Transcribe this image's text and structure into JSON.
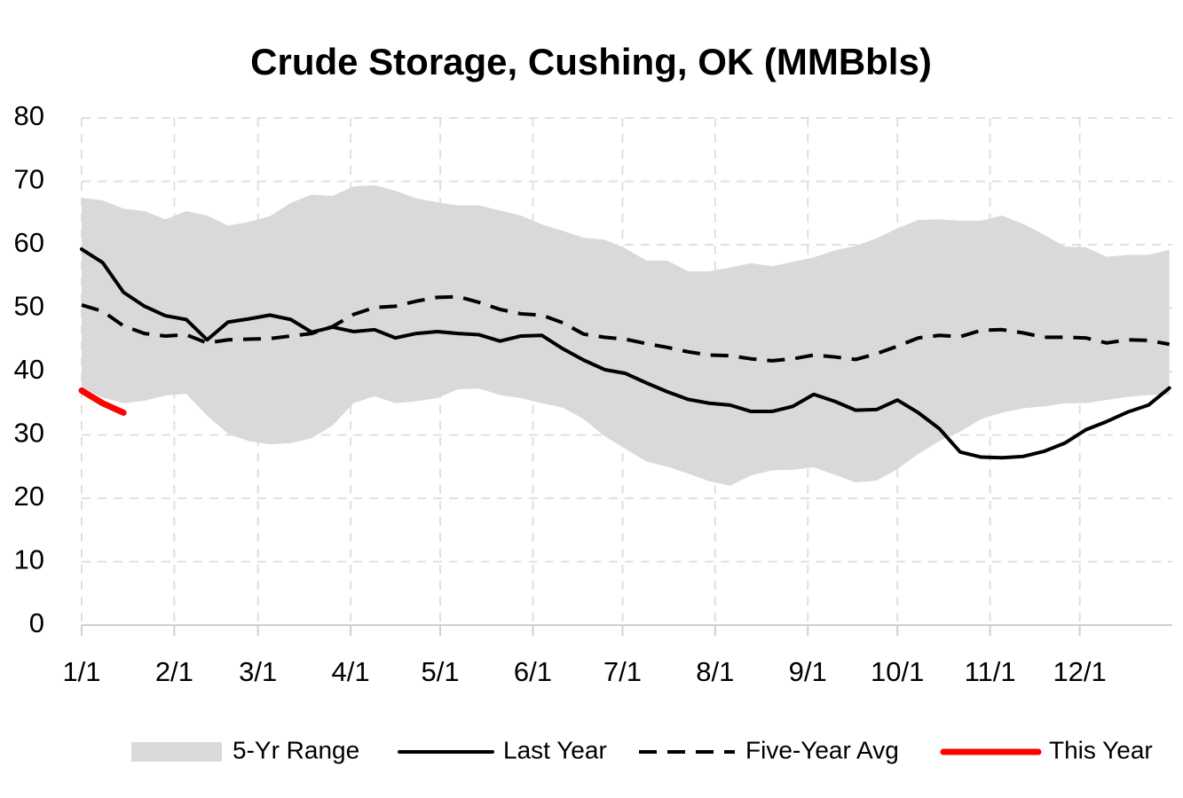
{
  "chart_data": {
    "type": "line",
    "title": "Crude Storage, Cushing, OK (MMBbls)",
    "x": [
      0,
      7,
      14,
      21,
      28,
      35,
      42,
      49,
      56,
      63,
      70,
      77,
      84,
      91,
      98,
      105,
      112,
      119,
      126,
      133,
      140,
      147,
      154,
      161,
      168,
      175,
      182,
      189,
      196,
      203,
      210,
      217,
      224,
      231,
      238,
      245,
      252,
      259,
      266,
      273,
      280,
      287,
      294,
      301,
      308,
      315,
      322,
      329,
      336,
      343,
      350,
      357,
      364
    ],
    "xlim": [
      0,
      365
    ],
    "xticks": [
      {
        "value": 0,
        "label": "1/1"
      },
      {
        "value": 31,
        "label": "2/1"
      },
      {
        "value": 59,
        "label": "3/1"
      },
      {
        "value": 90,
        "label": "4/1"
      },
      {
        "value": 120,
        "label": "5/1"
      },
      {
        "value": 151,
        "label": "6/1"
      },
      {
        "value": 181,
        "label": "7/1"
      },
      {
        "value": 212,
        "label": "8/1"
      },
      {
        "value": 243,
        "label": "9/1"
      },
      {
        "value": 273,
        "label": "10/1"
      },
      {
        "value": 304,
        "label": "11/1"
      },
      {
        "value": 334,
        "label": "12/1"
      }
    ],
    "ylim": [
      0,
      80
    ],
    "yticks": [
      0,
      10,
      20,
      30,
      40,
      50,
      60,
      70,
      80
    ],
    "grid": true,
    "legend": "bottom",
    "series": [
      {
        "name": "5-Yr Range",
        "color": "#d9d9d9",
        "style": "range",
        "upper": [
          67.4,
          67,
          65.7,
          65.3,
          64,
          65.3,
          64.6,
          63,
          63.6,
          64.5,
          66.6,
          67.9,
          67.7,
          69.2,
          69.4,
          68.5,
          67.3,
          66.7,
          66.2,
          66.2,
          65.4,
          64.6,
          63.2,
          62.2,
          61.1,
          60.8,
          59.4,
          57.5,
          57.5,
          55.8,
          55.8,
          56.4,
          57.1,
          56.6,
          57.3,
          58,
          59.1,
          59.8,
          61,
          62.6,
          63.9,
          64,
          63.8,
          63.8,
          64.6,
          63.3,
          61.6,
          59.7,
          59.6,
          58.1,
          58.4,
          58.4,
          59.2
        ],
        "lower": [
          37.5,
          35.9,
          35,
          35.4,
          36.2,
          36.5,
          33,
          30.2,
          29,
          28.5,
          28.7,
          29.5,
          31.5,
          35,
          36.1,
          35,
          35.3,
          35.8,
          37.2,
          37.3,
          36.3,
          35.8,
          35,
          34.3,
          32.5,
          29.8,
          27.8,
          25.8,
          25,
          23.9,
          22.7,
          22,
          23.6,
          24.4,
          24.5,
          24.9,
          23.7,
          22.5,
          22.8,
          24.6,
          27,
          29,
          30.5,
          32.5,
          33.5,
          34.2,
          34.5,
          35,
          35,
          35.5,
          36,
          36.3,
          36.4
        ]
      },
      {
        "name": "Last Year",
        "color": "#000000",
        "style": "solid",
        "values": [
          59.3,
          57.2,
          52.5,
          50.3,
          48.8,
          48.2,
          45,
          47.8,
          48.3,
          48.9,
          48.2,
          46.2,
          47,
          46.3,
          46.6,
          45.3,
          46,
          46.3,
          46,
          45.8,
          44.8,
          45.6,
          45.7,
          43.6,
          41.8,
          40.3,
          39.7,
          38.2,
          36.8,
          35.6,
          35,
          34.7,
          33.7,
          33.7,
          34.5,
          36.4,
          35.3,
          33.9,
          34,
          35.5,
          33.5,
          31,
          27.3,
          26.5,
          26.4,
          26.6,
          27.4,
          28.7,
          30.8,
          32.1,
          33.6,
          34.7,
          37.4
        ]
      },
      {
        "name": "Five-Year Avg",
        "color": "#000000",
        "style": "dashed",
        "values": [
          50.5,
          49.5,
          47.2,
          46,
          45.6,
          45.8,
          44.5,
          45,
          45.1,
          45.2,
          45.6,
          46,
          47.1,
          49,
          50.1,
          50.3,
          51.1,
          51.7,
          51.8,
          50.9,
          49.8,
          49.1,
          48.9,
          47.7,
          45.9,
          45.4,
          45.1,
          44.4,
          43.8,
          43.1,
          42.6,
          42.5,
          42,
          41.7,
          42,
          42.6,
          42.3,
          41.9,
          42.8,
          44,
          45.3,
          45.7,
          45.5,
          46.5,
          46.6,
          46.1,
          45.4,
          45.4,
          45.3,
          44.5,
          45,
          44.9,
          44.3
        ]
      },
      {
        "name": "This Year",
        "color": "#ff0000",
        "style": "thick",
        "values": [
          37,
          35,
          33.5,
          null,
          null,
          null,
          null,
          null,
          null,
          null,
          null,
          null,
          null,
          null,
          null,
          null,
          null,
          null,
          null,
          null,
          null,
          null,
          null,
          null,
          null,
          null,
          null,
          null,
          null,
          null,
          null,
          null,
          null,
          null,
          null,
          null,
          null,
          null,
          null,
          null,
          null,
          null,
          null,
          null,
          null,
          null,
          null,
          null,
          null,
          null,
          null,
          null,
          null
        ]
      }
    ]
  }
}
